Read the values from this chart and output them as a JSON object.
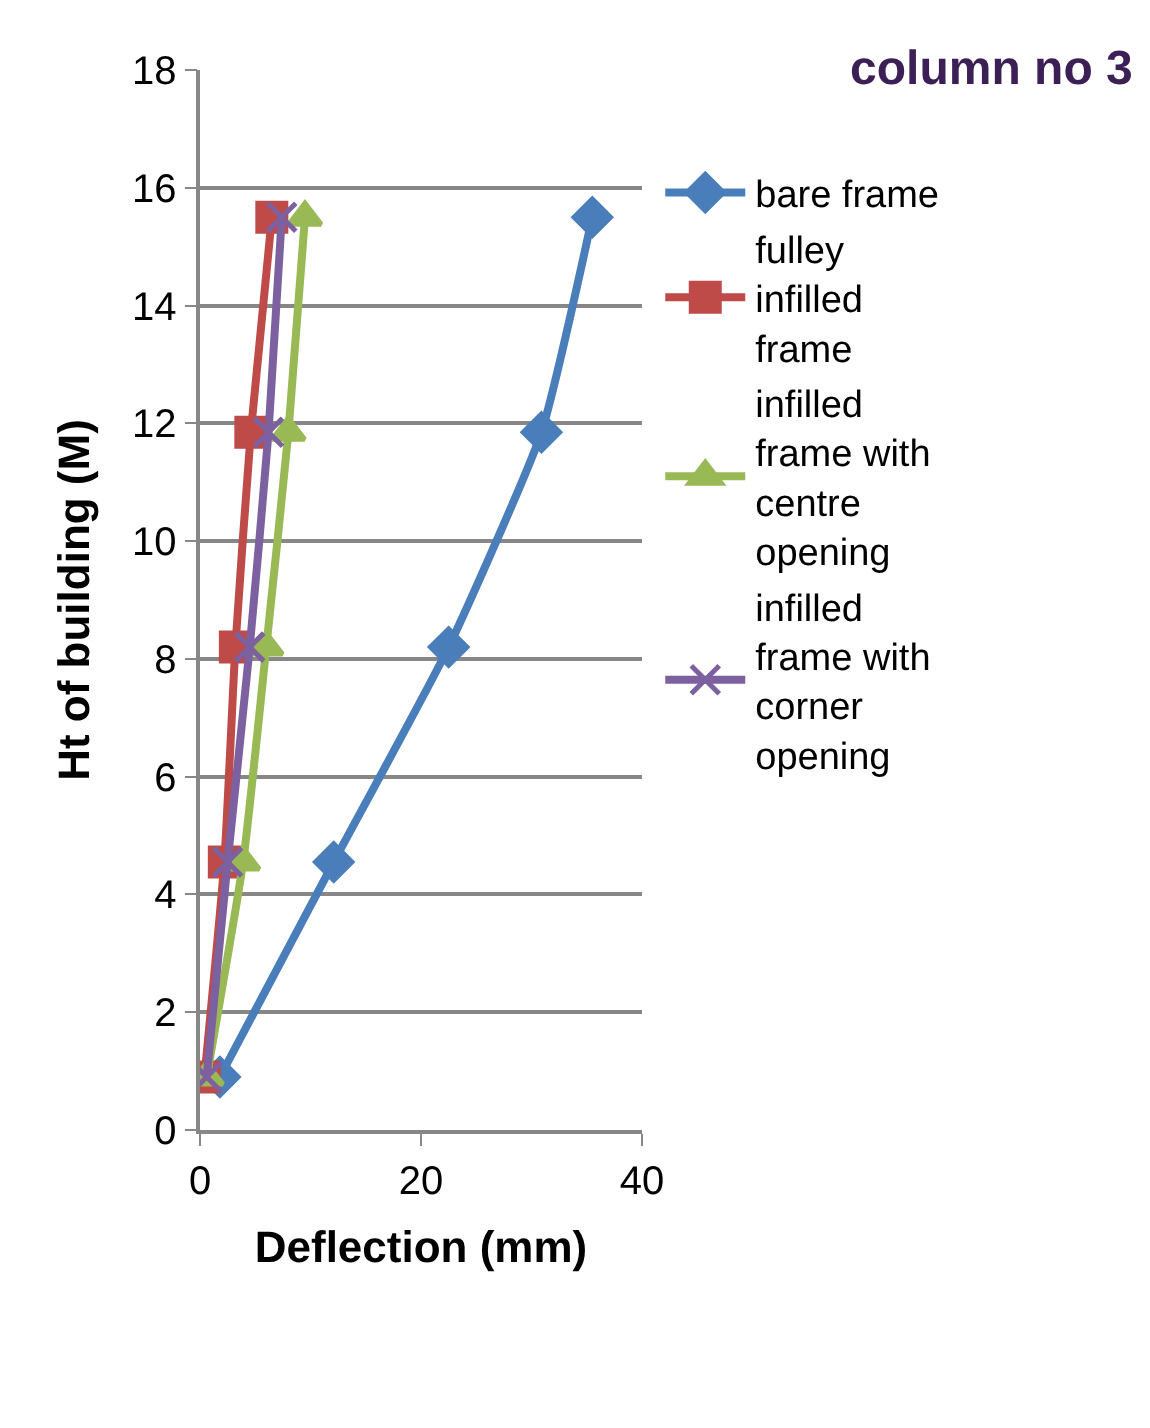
{
  "chart_data": {
    "type": "line",
    "title": "column no 3",
    "xlabel": "Deflection (mm)",
    "ylabel": "Ht of building (M)",
    "xlim": [
      0,
      40
    ],
    "xticks": [
      0,
      20,
      40
    ],
    "ylim": [
      0,
      18
    ],
    "yticks": [
      0,
      2,
      4,
      6,
      8,
      10,
      12,
      14,
      16,
      18
    ],
    "grid": "y",
    "legend": "right",
    "series": [
      {
        "name": "bare frame",
        "color": "#4a7ebb",
        "marker": "diamond",
        "x": [
          1.8,
          12.1,
          22.5,
          30.9,
          35.5
        ],
        "values": [
          0.9,
          4.55,
          8.2,
          11.85,
          15.5
        ]
      },
      {
        "name": "fulley infilled frame",
        "color": "#be4b48",
        "marker": "square",
        "x": [
          0.4,
          2.2,
          3.2,
          4.6,
          6.5
        ],
        "values": [
          0.9,
          4.55,
          8.2,
          11.85,
          15.5
        ]
      },
      {
        "name": "infilled frame with centre opening",
        "color": "#98b954",
        "marker": "triangle",
        "x": [
          0.6,
          3.9,
          6.0,
          8.0,
          9.5
        ],
        "values": [
          0.9,
          4.55,
          8.2,
          11.85,
          15.5
        ]
      },
      {
        "name": "infilled frame with corner opening",
        "color": "#7d60a0",
        "marker": "cross",
        "x": [
          0.6,
          2.5,
          4.5,
          6.2,
          7.4
        ],
        "values": [
          0.9,
          4.55,
          8.2,
          11.85,
          15.5
        ]
      }
    ]
  }
}
